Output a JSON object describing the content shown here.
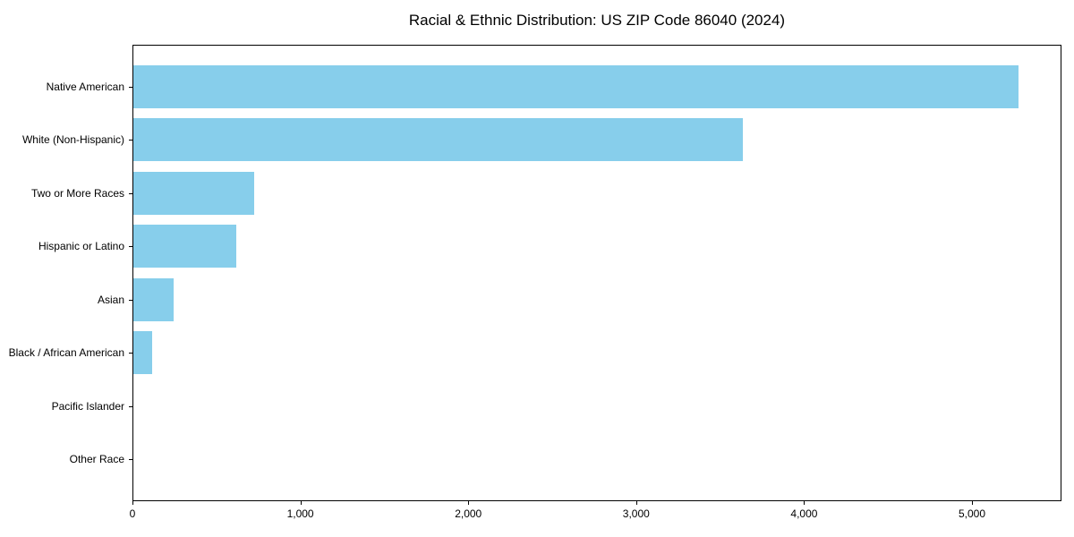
{
  "chart_data": {
    "type": "bar",
    "orientation": "horizontal",
    "title": "Racial & Ethnic Distribution: US ZIP Code 86040 (2024)",
    "categories": [
      "Native American",
      "White (Non-Hispanic)",
      "Two or More Races",
      "Hispanic or Latino",
      "Asian",
      "Black / African American",
      "Pacific Islander",
      "Other Race"
    ],
    "values": [
      5270,
      3630,
      720,
      615,
      240,
      110,
      0,
      0
    ],
    "xlabel": "",
    "ylabel": "",
    "xlim": [
      0,
      5533
    ],
    "x_ticks": [
      0,
      1000,
      2000,
      3000,
      4000,
      5000
    ],
    "x_tick_labels": [
      "0",
      "1,000",
      "2,000",
      "3,000",
      "4,000",
      "5,000"
    ],
    "bar_color": "#87CEEB",
    "axis_color": "#000000",
    "background_color": "#ffffff",
    "grid": false,
    "legend": "none"
  }
}
